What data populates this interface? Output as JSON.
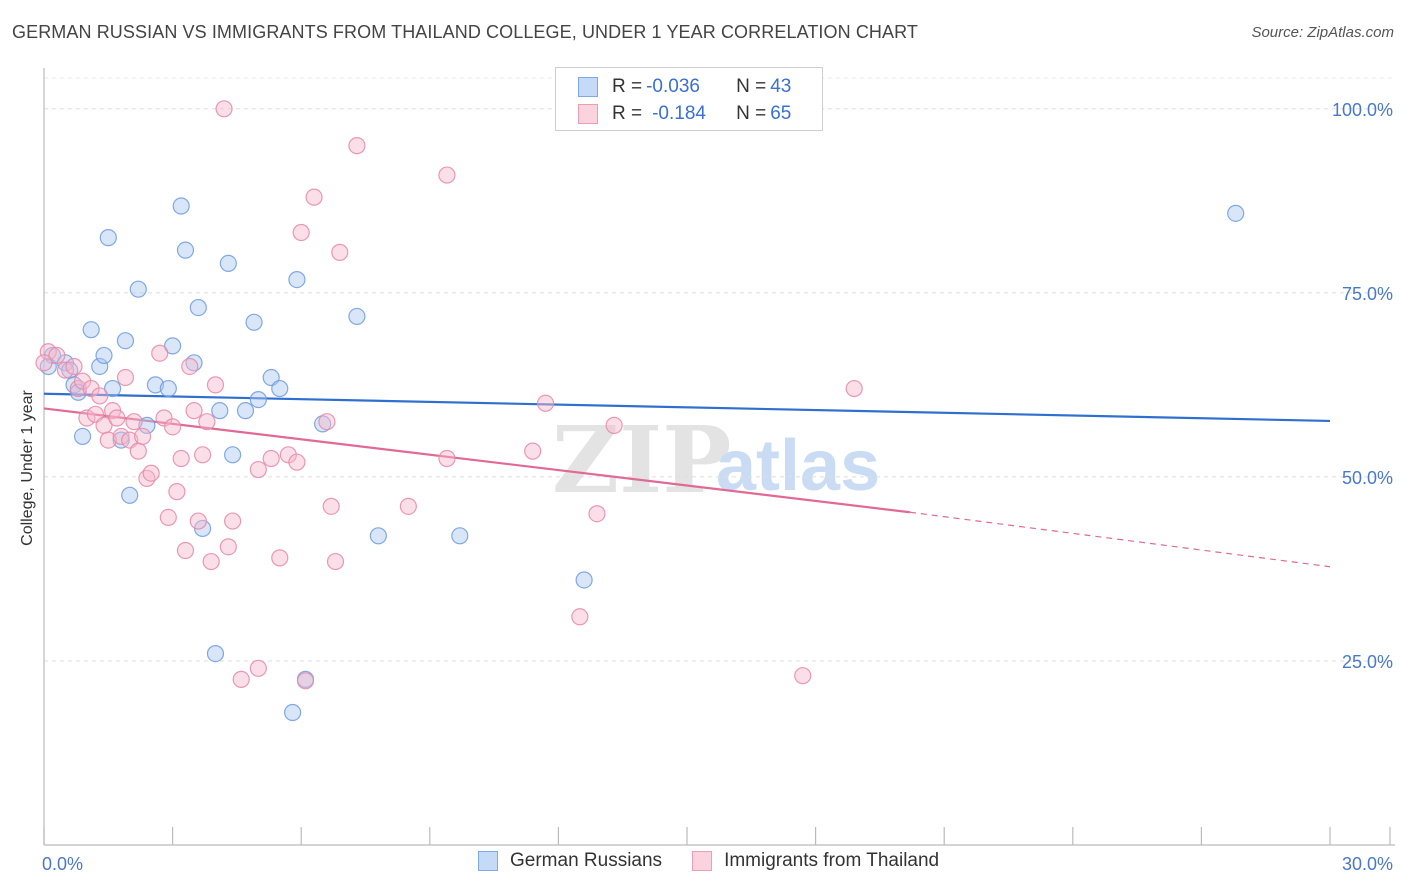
{
  "title": "GERMAN RUSSIAN VS IMMIGRANTS FROM THAILAND COLLEGE, UNDER 1 YEAR CORRELATION CHART",
  "source": "Source: ZipAtlas.com",
  "watermark": {
    "zip": "ZIP",
    "atlas": "atlas"
  },
  "legend": {
    "rows": [
      {
        "r_label": "R = ",
        "r_value": "-0.036",
        "n_label": "N = ",
        "n_value": "43",
        "color": "#a9c8f0"
      },
      {
        "r_label": "R = ",
        "r_value": "-0.184",
        "n_label": "N = ",
        "n_value": "65",
        "color": "#f6b8cb"
      }
    ]
  },
  "bottom_legend": [
    "German Russians",
    "Immigrants from Thailand"
  ],
  "chart_data": {
    "type": "scatter",
    "title": "GERMAN RUSSIAN VS IMMIGRANTS FROM THAILAND COLLEGE, UNDER 1 YEAR CORRELATION CHART",
    "xlabel": "",
    "ylabel": "College, Under 1 year",
    "xlim": [
      0,
      30
    ],
    "ylim": [
      0,
      105
    ],
    "x_tick_labels": [
      "0.0%",
      "30.0%"
    ],
    "y_ticks": [
      25,
      50,
      75,
      100
    ],
    "y_tick_labels": [
      "25.0%",
      "50.0%",
      "75.0%",
      "100.0%"
    ],
    "grid": true,
    "legend_placement": "top-center",
    "series": [
      {
        "name": "German Russians",
        "color": "#6c9be0",
        "fill": "#a9c8f0",
        "trend": {
          "x0": 0,
          "y0": 61.3,
          "x1": 30,
          "y1": 57.6
        },
        "points": [
          [
            0.2,
            66.5
          ],
          [
            0.5,
            65.5
          ],
          [
            0.6,
            64.5
          ],
          [
            0.7,
            62.5
          ],
          [
            0.8,
            61.5
          ],
          [
            0.9,
            55.5
          ],
          [
            1.1,
            70.0
          ],
          [
            1.3,
            65.0
          ],
          [
            1.4,
            66.5
          ],
          [
            1.5,
            82.5
          ],
          [
            1.6,
            62.0
          ],
          [
            1.8,
            55.0
          ],
          [
            1.9,
            68.5
          ],
          [
            2.0,
            47.5
          ],
          [
            2.2,
            75.5
          ],
          [
            2.4,
            57.0
          ],
          [
            2.6,
            62.5
          ],
          [
            2.9,
            62.0
          ],
          [
            3.0,
            67.8
          ],
          [
            3.2,
            86.8
          ],
          [
            3.3,
            80.8
          ],
          [
            3.5,
            65.5
          ],
          [
            3.6,
            73.0
          ],
          [
            3.7,
            43.0
          ],
          [
            4.0,
            26.0
          ],
          [
            4.1,
            59.0
          ],
          [
            4.3,
            79.0
          ],
          [
            4.4,
            53.0
          ],
          [
            4.7,
            59.0
          ],
          [
            4.9,
            71.0
          ],
          [
            5.0,
            60.5
          ],
          [
            5.3,
            63.5
          ],
          [
            5.5,
            62.0
          ],
          [
            5.8,
            18.0
          ],
          [
            5.9,
            76.8
          ],
          [
            6.1,
            22.5
          ],
          [
            6.5,
            57.2
          ],
          [
            7.3,
            71.8
          ],
          [
            7.8,
            42.0
          ],
          [
            9.7,
            42.0
          ],
          [
            12.6,
            36.0
          ],
          [
            27.8,
            85.8
          ],
          [
            0.1,
            65.0
          ]
        ]
      },
      {
        "name": "Immigrants from Thailand",
        "color": "#e887a8",
        "fill": "#f6b8cb",
        "trend": {
          "x0": 0,
          "y0": 59.3,
          "x1": 20.2,
          "y1": 45.2,
          "dash_x1": 30,
          "dash_y1": 37.8
        },
        "points": [
          [
            0.1,
            67.0
          ],
          [
            0.3,
            66.5
          ],
          [
            0.5,
            64.5
          ],
          [
            0.7,
            65.0
          ],
          [
            0.8,
            62.0
          ],
          [
            0.9,
            63.0
          ],
          [
            1.0,
            58.0
          ],
          [
            1.1,
            62.0
          ],
          [
            1.2,
            58.5
          ],
          [
            1.3,
            61.0
          ],
          [
            1.4,
            57.0
          ],
          [
            1.5,
            55.0
          ],
          [
            1.6,
            59.0
          ],
          [
            1.7,
            58.0
          ],
          [
            1.8,
            55.5
          ],
          [
            1.9,
            63.5
          ],
          [
            2.0,
            55.0
          ],
          [
            2.1,
            57.5
          ],
          [
            2.2,
            53.5
          ],
          [
            2.3,
            55.5
          ],
          [
            2.4,
            49.8
          ],
          [
            2.5,
            50.5
          ],
          [
            2.7,
            66.8
          ],
          [
            2.8,
            58.0
          ],
          [
            2.9,
            44.5
          ],
          [
            3.0,
            56.8
          ],
          [
            3.1,
            48.0
          ],
          [
            3.2,
            52.5
          ],
          [
            3.3,
            40.0
          ],
          [
            3.4,
            65.0
          ],
          [
            3.5,
            59.0
          ],
          [
            3.6,
            44.0
          ],
          [
            3.7,
            53.0
          ],
          [
            3.8,
            57.5
          ],
          [
            3.9,
            38.5
          ],
          [
            4.0,
            62.5
          ],
          [
            4.2,
            100.0
          ],
          [
            4.3,
            40.5
          ],
          [
            4.4,
            44.0
          ],
          [
            4.6,
            22.5
          ],
          [
            5.0,
            24.0
          ],
          [
            5.0,
            51.0
          ],
          [
            5.3,
            52.5
          ],
          [
            5.5,
            39.0
          ],
          [
            5.7,
            53.0
          ],
          [
            5.9,
            52.0
          ],
          [
            6.0,
            83.2
          ],
          [
            6.1,
            22.3
          ],
          [
            6.3,
            88.0
          ],
          [
            6.6,
            57.5
          ],
          [
            6.7,
            46.0
          ],
          [
            6.8,
            38.5
          ],
          [
            6.9,
            80.5
          ],
          [
            7.3,
            95.0
          ],
          [
            8.5,
            46.0
          ],
          [
            9.4,
            91.0
          ],
          [
            9.4,
            52.5
          ],
          [
            11.4,
            53.5
          ],
          [
            11.7,
            60.0
          ],
          [
            12.5,
            31.0
          ],
          [
            12.9,
            45.0
          ],
          [
            13.3,
            57.0
          ],
          [
            17.7,
            23.0
          ],
          [
            18.9,
            62.0
          ],
          [
            0.0,
            65.5
          ]
        ]
      }
    ]
  }
}
